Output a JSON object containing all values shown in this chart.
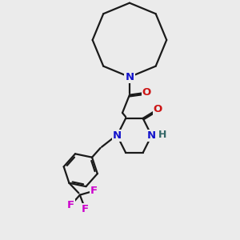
{
  "bg_color": "#ebebeb",
  "bond_color": "#1a1a1a",
  "N_color": "#1414cc",
  "O_color": "#cc1414",
  "F_color": "#cc00cc",
  "H_color": "#336666",
  "line_width": 1.6,
  "font_size": 9.5,
  "xlim": [
    0.5,
    8.5
  ],
  "ylim": [
    0.2,
    10.2
  ]
}
